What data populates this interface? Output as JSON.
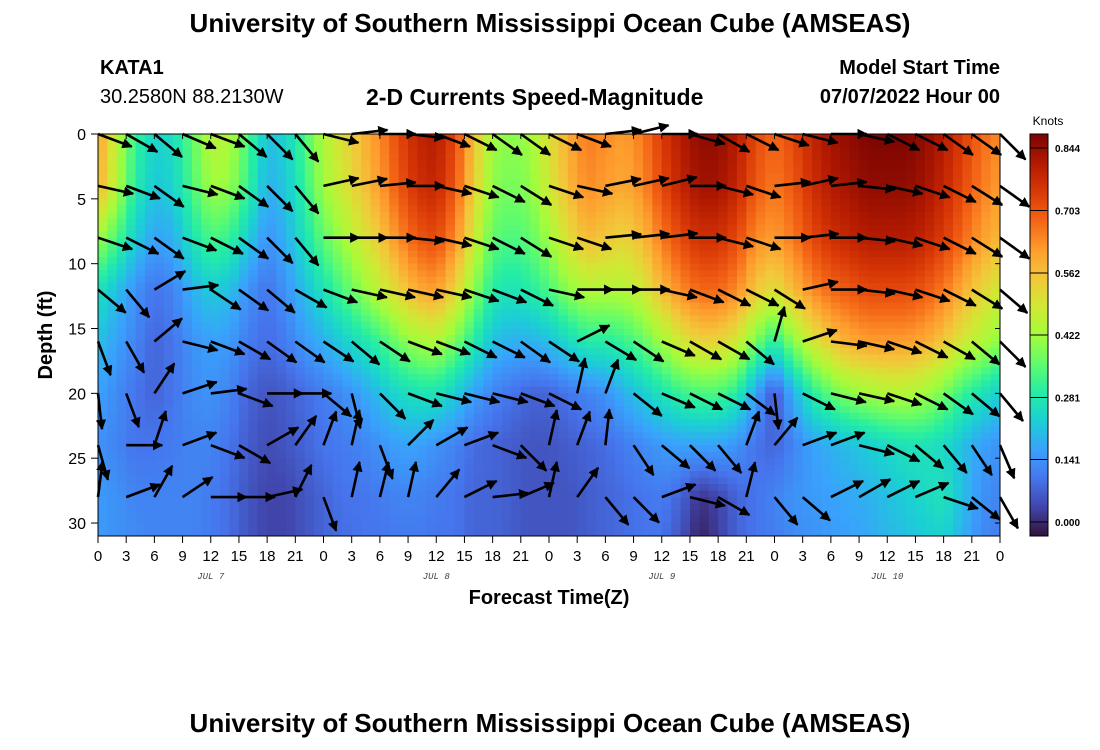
{
  "header": {
    "title": "University of Southern Mississippi Ocean Cube (AMSEAS)",
    "station": "KATA1",
    "coords": "30.2580N  88.2130W",
    "chart_title": "2-D Currents Speed-Magnitude",
    "model_start_label": "Model Start Time",
    "model_start_value": "07/07/2022 Hour 00"
  },
  "footer": {
    "title": "University of Southern Mississippi Ocean Cube (AMSEAS)"
  },
  "chart_data": {
    "type": "heatmap",
    "title": "2-D Currents Speed-Magnitude",
    "xlabel": "Forecast Time(Z)",
    "ylabel": "Depth (ft)",
    "colorbar_label": "Knots",
    "colorbar_ticks": [
      0.0,
      0.141,
      0.281,
      0.422,
      0.562,
      0.703,
      0.844
    ],
    "colorbar_tick_labels": [
      "0.000",
      "0.141",
      "0.281",
      "0.422",
      "0.562",
      "0.703",
      "0.844"
    ],
    "x_range_hours": [
      0,
      96
    ],
    "x_tick_labels": [
      "0",
      "3",
      "6",
      "9",
      "12",
      "15",
      "18",
      "21",
      "0",
      "3",
      "6",
      "9",
      "12",
      "15",
      "18",
      "21",
      "0",
      "3",
      "6",
      "9",
      "12",
      "15",
      "18",
      "21",
      "0",
      "3",
      "6",
      "9",
      "12",
      "15",
      "18",
      "21",
      "0"
    ],
    "day_labels": [
      "JUL 7",
      "JUL 8",
      "JUL 9",
      "JUL 10"
    ],
    "day_label_hours": [
      12,
      36,
      60,
      84
    ],
    "y_range_ft": [
      0,
      31
    ],
    "y_ticks": [
      0,
      5,
      10,
      15,
      20,
      25,
      30
    ],
    "color_scale": [
      "#30123b",
      "#4145ab",
      "#4675ed",
      "#39a2fc",
      "#1bcfd4",
      "#24eca6",
      "#61fc6c",
      "#a4fc3b",
      "#d1e834",
      "#f3c63a",
      "#fe9b2d",
      "#f36315",
      "#d93806",
      "#b11901",
      "#7a0402"
    ],
    "speed_grid": {
      "times": [
        0,
        2,
        4,
        6,
        8,
        10,
        12,
        14,
        16,
        18,
        20,
        22,
        24,
        26,
        28,
        30,
        32,
        34,
        36,
        38,
        40,
        42,
        44,
        46,
        48,
        50,
        52,
        54,
        56,
        58,
        60,
        62,
        64,
        66,
        68,
        70,
        72,
        74,
        76,
        78,
        80,
        82,
        84,
        86,
        88,
        90,
        92,
        94,
        96
      ],
      "depths": [
        0,
        4,
        8,
        12,
        16,
        20,
        24,
        28,
        31
      ],
      "values": [
        [
          0.6,
          0.45,
          0.32,
          0.25,
          0.27,
          0.36,
          0.45,
          0.44,
          0.34,
          0.22,
          0.25,
          0.34,
          0.44,
          0.5,
          0.56,
          0.62,
          0.7,
          0.76,
          0.78,
          0.7,
          0.55,
          0.42,
          0.4,
          0.42,
          0.5,
          0.58,
          0.64,
          0.62,
          0.6,
          0.64,
          0.72,
          0.78,
          0.82,
          0.82,
          0.78,
          0.7,
          0.66,
          0.7,
          0.76,
          0.8,
          0.82,
          0.84,
          0.84,
          0.84,
          0.82,
          0.78,
          0.72,
          0.66,
          0.62
        ],
        [
          0.58,
          0.44,
          0.3,
          0.23,
          0.25,
          0.34,
          0.42,
          0.41,
          0.32,
          0.2,
          0.23,
          0.32,
          0.42,
          0.48,
          0.54,
          0.6,
          0.68,
          0.74,
          0.76,
          0.68,
          0.53,
          0.4,
          0.38,
          0.4,
          0.48,
          0.56,
          0.62,
          0.6,
          0.58,
          0.62,
          0.7,
          0.76,
          0.8,
          0.8,
          0.76,
          0.68,
          0.64,
          0.68,
          0.74,
          0.78,
          0.8,
          0.82,
          0.82,
          0.82,
          0.8,
          0.76,
          0.7,
          0.64,
          0.6
        ],
        [
          0.42,
          0.34,
          0.24,
          0.18,
          0.2,
          0.28,
          0.34,
          0.32,
          0.24,
          0.16,
          0.2,
          0.28,
          0.36,
          0.42,
          0.48,
          0.54,
          0.62,
          0.68,
          0.7,
          0.62,
          0.48,
          0.36,
          0.34,
          0.36,
          0.42,
          0.5,
          0.56,
          0.54,
          0.52,
          0.56,
          0.64,
          0.7,
          0.74,
          0.74,
          0.7,
          0.62,
          0.6,
          0.64,
          0.7,
          0.74,
          0.76,
          0.78,
          0.78,
          0.78,
          0.76,
          0.72,
          0.66,
          0.6,
          0.56
        ],
        [
          0.28,
          0.22,
          0.16,
          0.12,
          0.14,
          0.2,
          0.24,
          0.22,
          0.16,
          0.12,
          0.16,
          0.22,
          0.28,
          0.34,
          0.4,
          0.46,
          0.52,
          0.58,
          0.6,
          0.52,
          0.4,
          0.3,
          0.28,
          0.3,
          0.34,
          0.4,
          0.44,
          0.44,
          0.44,
          0.48,
          0.56,
          0.62,
          0.66,
          0.66,
          0.62,
          0.54,
          0.5,
          0.56,
          0.62,
          0.66,
          0.68,
          0.7,
          0.7,
          0.7,
          0.68,
          0.64,
          0.58,
          0.52,
          0.48
        ],
        [
          0.22,
          0.18,
          0.14,
          0.1,
          0.12,
          0.16,
          0.18,
          0.17,
          0.13,
          0.11,
          0.13,
          0.17,
          0.2,
          0.24,
          0.28,
          0.32,
          0.38,
          0.42,
          0.44,
          0.38,
          0.3,
          0.22,
          0.2,
          0.2,
          0.22,
          0.26,
          0.3,
          0.3,
          0.32,
          0.36,
          0.42,
          0.48,
          0.52,
          0.52,
          0.48,
          0.38,
          0.3,
          0.4,
          0.48,
          0.54,
          0.58,
          0.6,
          0.6,
          0.6,
          0.58,
          0.54,
          0.48,
          0.44,
          0.4
        ],
        [
          0.18,
          0.15,
          0.12,
          0.1,
          0.12,
          0.15,
          0.16,
          0.14,
          0.1,
          0.08,
          0.09,
          0.11,
          0.13,
          0.15,
          0.18,
          0.22,
          0.26,
          0.28,
          0.28,
          0.24,
          0.18,
          0.14,
          0.12,
          0.1,
          0.1,
          0.12,
          0.14,
          0.16,
          0.2,
          0.24,
          0.28,
          0.32,
          0.34,
          0.34,
          0.3,
          0.18,
          0.08,
          0.2,
          0.3,
          0.36,
          0.4,
          0.42,
          0.44,
          0.44,
          0.42,
          0.38,
          0.32,
          0.28,
          0.24
        ],
        [
          0.16,
          0.14,
          0.12,
          0.12,
          0.13,
          0.14,
          0.14,
          0.12,
          0.09,
          0.07,
          0.08,
          0.1,
          0.12,
          0.13,
          0.14,
          0.16,
          0.18,
          0.18,
          0.16,
          0.14,
          0.11,
          0.1,
          0.09,
          0.08,
          0.08,
          0.09,
          0.1,
          0.11,
          0.13,
          0.15,
          0.17,
          0.18,
          0.18,
          0.18,
          0.16,
          0.12,
          0.1,
          0.14,
          0.18,
          0.2,
          0.22,
          0.24,
          0.26,
          0.28,
          0.28,
          0.26,
          0.22,
          0.18,
          0.16
        ],
        [
          0.17,
          0.16,
          0.14,
          0.14,
          0.14,
          0.14,
          0.13,
          0.11,
          0.08,
          0.06,
          0.06,
          0.08,
          0.1,
          0.12,
          0.12,
          0.13,
          0.14,
          0.14,
          0.13,
          0.12,
          0.1,
          0.1,
          0.09,
          0.08,
          0.08,
          0.08,
          0.09,
          0.1,
          0.11,
          0.12,
          0.13,
          0.1,
          0.04,
          0.06,
          0.1,
          0.12,
          0.14,
          0.16,
          0.17,
          0.18,
          0.19,
          0.2,
          0.22,
          0.24,
          0.26,
          0.28,
          0.22,
          0.16,
          0.14
        ],
        [
          0.17,
          0.16,
          0.15,
          0.14,
          0.14,
          0.14,
          0.13,
          0.11,
          0.08,
          0.06,
          0.06,
          0.08,
          0.1,
          0.11,
          0.12,
          0.12,
          0.13,
          0.13,
          0.12,
          0.12,
          0.1,
          0.1,
          0.09,
          0.08,
          0.08,
          0.08,
          0.09,
          0.1,
          0.11,
          0.12,
          0.12,
          0.08,
          0.02,
          0.05,
          0.1,
          0.12,
          0.13,
          0.15,
          0.16,
          0.17,
          0.18,
          0.19,
          0.21,
          0.22,
          0.24,
          0.25,
          0.2,
          0.15,
          0.13
        ]
      ]
    },
    "vectors": {
      "times": [
        0,
        3,
        6,
        9,
        12,
        15,
        18,
        21,
        24,
        27,
        30,
        33,
        36,
        39,
        42,
        45,
        48,
        51,
        54,
        57,
        60,
        63,
        66,
        69,
        72,
        75,
        78,
        81,
        84,
        87,
        90,
        93,
        96
      ],
      "depths": [
        0,
        4,
        8,
        12,
        16,
        20,
        24,
        28
      ],
      "u": [
        [
          0.8,
          0.7,
          0.6,
          0.7,
          0.8,
          0.6,
          0.6,
          0.5,
          0.8,
          0.9,
          0.9,
          0.9,
          0.8,
          0.8,
          0.7,
          0.7,
          0.8,
          0.8,
          0.9,
          0.8,
          0.7,
          0.7,
          0.7,
          0.8,
          0.9,
          0.8,
          0.8,
          0.9,
          0.8,
          0.8,
          0.7,
          0.7,
          0.6
        ],
        [
          0.9,
          0.8,
          0.7,
          0.8,
          0.8,
          0.7,
          0.6,
          0.5,
          0.9,
          1.0,
          1.0,
          1.0,
          0.9,
          0.9,
          0.8,
          0.8,
          0.9,
          0.9,
          1.0,
          0.9,
          0.8,
          0.8,
          0.8,
          0.9,
          0.9,
          0.9,
          0.9,
          1.0,
          0.9,
          0.9,
          0.8,
          0.8,
          0.7
        ],
        [
          0.9,
          0.8,
          0.7,
          0.8,
          0.8,
          0.7,
          0.6,
          0.5,
          0.9,
          1.0,
          1.0,
          1.0,
          0.9,
          0.9,
          0.8,
          0.8,
          0.9,
          0.9,
          1.0,
          0.9,
          0.8,
          0.8,
          0.8,
          0.9,
          0.9,
          0.9,
          0.9,
          1.0,
          0.9,
          0.9,
          0.8,
          0.8,
          0.7
        ],
        [
          0.6,
          0.5,
          0.5,
          0.8,
          0.6,
          0.7,
          0.6,
          0.7,
          0.8,
          0.9,
          0.9,
          0.9,
          0.9,
          0.9,
          0.8,
          0.8,
          0.9,
          1.0,
          1.0,
          1.0,
          0.9,
          0.8,
          0.8,
          0.8,
          0.8,
          0.9,
          0.9,
          0.9,
          0.9,
          0.9,
          0.8,
          0.8,
          0.7
        ],
        [
          0.3,
          0.4,
          0.6,
          0.8,
          0.8,
          0.7,
          0.7,
          0.7,
          0.6,
          0.6,
          0.6,
          0.8,
          0.8,
          0.8,
          0.8,
          0.7,
          0.6,
          0.4,
          0.5,
          0.6,
          0.7,
          0.7,
          0.7,
          0.6,
          0.2,
          0.6,
          0.8,
          0.9,
          0.9,
          0.8,
          0.7,
          0.6,
          0.6
        ],
        [
          0.1,
          0.3,
          0.4,
          0.6,
          0.8,
          0.8,
          0.9,
          0.9,
          0.6,
          0.2,
          0.5,
          0.8,
          0.8,
          0.8,
          0.8,
          0.8,
          0.6,
          0.2,
          0.3,
          0.5,
          0.7,
          0.8,
          0.8,
          0.8,
          0.1,
          0.6,
          0.8,
          0.9,
          0.9,
          0.8,
          0.7,
          0.6,
          0.5
        ],
        [
          0.2,
          0.9,
          0.3,
          0.8,
          0.8,
          0.7,
          0.7,
          0.5,
          0.3,
          0.2,
          0.3,
          0.6,
          0.7,
          0.8,
          0.8,
          0.5,
          0.2,
          0.3,
          0.1,
          0.4,
          0.6,
          0.6,
          0.5,
          0.3,
          0.5,
          0.8,
          0.8,
          0.8,
          0.8,
          0.6,
          0.5,
          0.4,
          0.3
        ],
        [
          0.1,
          0.8,
          0.4,
          0.6,
          0.9,
          0.9,
          0.9,
          0.4,
          0.3,
          0.2,
          0.2,
          0.2,
          0.5,
          0.8,
          0.9,
          0.7,
          0.2,
          0.5,
          0.5,
          0.6,
          0.8,
          0.8,
          0.7,
          0.2,
          0.5,
          0.7,
          0.6,
          0.7,
          0.8,
          0.7,
          0.6,
          0.5,
          0.4
        ]
      ],
      "v": [
        [
          -0.3,
          -0.4,
          -0.5,
          -0.3,
          -0.3,
          -0.5,
          -0.6,
          -0.6,
          -0.2,
          0.1,
          0.0,
          -0.1,
          -0.3,
          -0.4,
          -0.5,
          -0.5,
          -0.4,
          -0.3,
          0.1,
          0.2,
          0.0,
          -0.2,
          -0.4,
          -0.4,
          -0.3,
          -0.2,
          0.0,
          -0.2,
          -0.4,
          -0.4,
          -0.5,
          -0.5,
          -0.6
        ],
        [
          -0.2,
          -0.3,
          -0.5,
          -0.2,
          -0.3,
          -0.5,
          -0.6,
          -0.6,
          0.2,
          0.2,
          0.1,
          0.0,
          -0.2,
          -0.3,
          -0.4,
          -0.5,
          -0.3,
          -0.2,
          0.2,
          0.2,
          0.2,
          0.0,
          -0.2,
          -0.3,
          0.1,
          0.2,
          0.1,
          -0.1,
          -0.2,
          -0.3,
          -0.4,
          -0.5,
          -0.5
        ],
        [
          -0.3,
          -0.4,
          -0.5,
          -0.3,
          -0.4,
          -0.5,
          -0.6,
          -0.6,
          0.0,
          0.0,
          0.0,
          -0.1,
          -0.2,
          -0.3,
          -0.4,
          -0.5,
          -0.3,
          -0.3,
          0.1,
          0.1,
          0.1,
          0.0,
          -0.2,
          -0.3,
          0.0,
          0.1,
          0.0,
          -0.1,
          -0.2,
          -0.3,
          -0.4,
          -0.5,
          -0.5
        ],
        [
          -0.5,
          -0.6,
          0.3,
          0.1,
          -0.4,
          -0.5,
          -0.5,
          -0.4,
          -0.3,
          -0.2,
          -0.2,
          -0.2,
          -0.2,
          -0.3,
          -0.3,
          -0.4,
          -0.2,
          0.0,
          0.0,
          0.0,
          -0.2,
          -0.3,
          -0.4,
          -0.4,
          -0.5,
          0.2,
          0.0,
          -0.1,
          -0.2,
          -0.3,
          -0.4,
          -0.5,
          -0.6
        ],
        [
          -0.8,
          -0.7,
          0.5,
          -0.2,
          -0.3,
          -0.4,
          -0.5,
          -0.5,
          -0.4,
          -0.5,
          -0.4,
          -0.3,
          -0.3,
          -0.4,
          -0.4,
          -0.5,
          -0.4,
          0.2,
          -0.3,
          -0.4,
          -0.3,
          -0.4,
          -0.4,
          -0.5,
          0.7,
          0.2,
          -0.1,
          -0.2,
          -0.3,
          -0.4,
          -0.4,
          -0.5,
          -0.6
        ],
        [
          -0.9,
          -0.8,
          0.6,
          0.2,
          0.1,
          -0.3,
          0.0,
          0.0,
          -0.5,
          -0.8,
          -0.5,
          -0.3,
          -0.2,
          -0.2,
          -0.2,
          -0.3,
          -0.3,
          0.9,
          0.8,
          -0.4,
          -0.3,
          -0.4,
          -0.4,
          -0.6,
          -0.9,
          -0.3,
          -0.2,
          -0.2,
          -0.3,
          -0.4,
          -0.5,
          -0.5,
          -0.6
        ],
        [
          -0.7,
          0.0,
          0.9,
          0.3,
          -0.3,
          -0.4,
          0.4,
          0.7,
          0.8,
          0.9,
          -0.8,
          0.6,
          0.4,
          0.3,
          -0.3,
          -0.5,
          0.9,
          0.8,
          0.9,
          -0.6,
          -0.5,
          -0.6,
          -0.6,
          0.8,
          0.6,
          0.3,
          0.3,
          -0.2,
          -0.4,
          -0.5,
          -0.6,
          -0.6,
          -0.7
        ],
        [
          0.8,
          0.3,
          0.7,
          0.4,
          0.0,
          0.0,
          0.2,
          0.8,
          -0.8,
          0.9,
          0.8,
          0.9,
          0.6,
          0.4,
          0.1,
          0.3,
          0.9,
          0.7,
          -0.6,
          -0.6,
          0.3,
          -0.2,
          -0.4,
          0.8,
          -0.6,
          -0.6,
          0.3,
          0.4,
          0.4,
          0.3,
          -0.2,
          -0.4,
          -0.7
        ]
      ]
    }
  }
}
